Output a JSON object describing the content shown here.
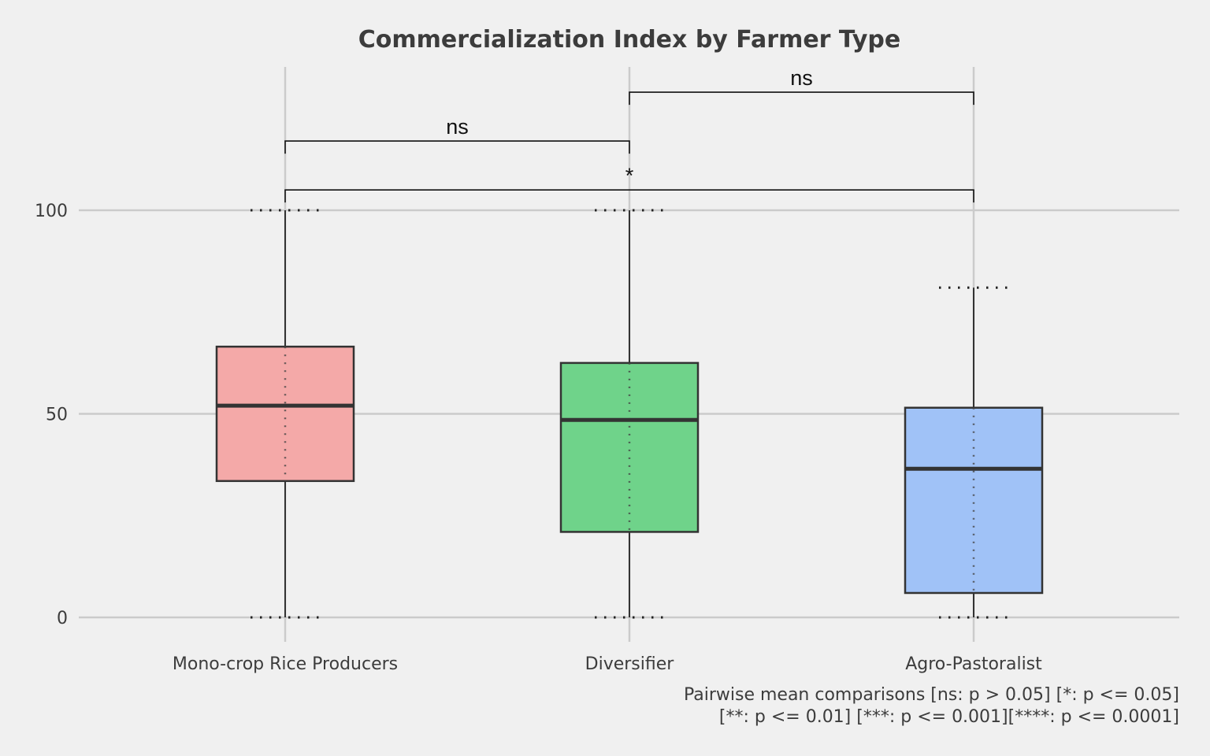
{
  "chart_data": {
    "type": "box",
    "title": "Commercialization Index by Farmer Type",
    "xlabel": "",
    "ylabel": "",
    "ylim": [
      -6,
      132
    ],
    "yticks": [
      0,
      50,
      100
    ],
    "grid": true,
    "categories": [
      "Mono-crop Rice Producers",
      "Diversifier",
      "Agro-Pastoralist"
    ],
    "boxes": [
      {
        "category": "Mono-crop Rice Producers",
        "min": 0,
        "q1": 33.5,
        "median": 52,
        "q3": 66.5,
        "max": 100,
        "color": "#f4a9a8"
      },
      {
        "category": "Diversifier",
        "min": 0,
        "q1": 21,
        "median": 48.5,
        "q3": 62.5,
        "max": 100,
        "color": "#6fd38a"
      },
      {
        "category": "Agro-Pastoralist",
        "min": 0,
        "q1": 6,
        "median": 36.5,
        "q3": 51.5,
        "max": 81,
        "color": "#a0c2f7"
      }
    ],
    "comparisons": [
      {
        "from": 0,
        "to": 1,
        "label": "ns",
        "y": 117
      },
      {
        "from": 1,
        "to": 2,
        "label": "ns",
        "y": 129
      },
      {
        "from": 0,
        "to": 2,
        "label": "*",
        "y": 105
      }
    ],
    "caption": [
      "Pairwise mean comparisons [ns: p > 0.05] [*: p <= 0.05]",
      "[**: p <= 0.01] [***: p <= 0.001][****: p <= 0.0001]"
    ]
  }
}
